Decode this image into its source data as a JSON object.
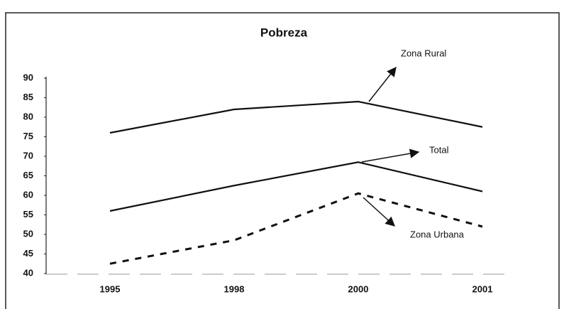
{
  "chart_data": {
    "type": "line",
    "title": "Pobreza",
    "categories": [
      "1995",
      "1998",
      "2000",
      "2001"
    ],
    "series": [
      {
        "name": "Zona Rural",
        "color": "#111111",
        "style": "solid",
        "values": [
          76,
          82,
          84,
          77.5
        ]
      },
      {
        "name": "Total",
        "color": "#111111",
        "style": "solid",
        "values": [
          56,
          62.5,
          68.5,
          61
        ]
      },
      {
        "name": "Zona Urbana",
        "color": "#111111",
        "style": "dashed",
        "values": [
          42.5,
          48.5,
          60.5,
          52
        ]
      }
    ],
    "ylim": [
      40,
      90
    ],
    "yticks": [
      40,
      45,
      50,
      55,
      60,
      65,
      70,
      75,
      80,
      85,
      90
    ],
    "grid": false
  }
}
